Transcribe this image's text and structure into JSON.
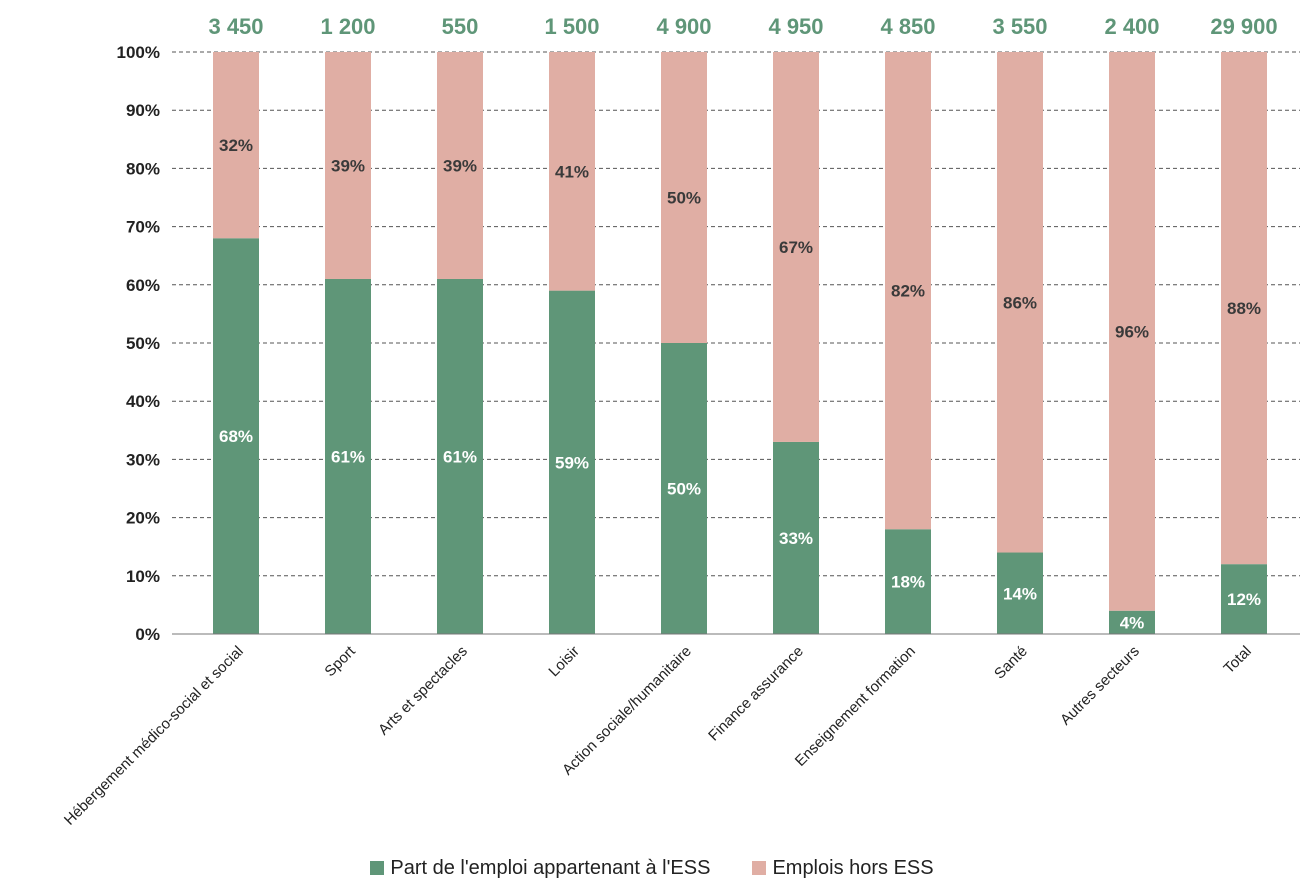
{
  "chart_data": {
    "type": "bar",
    "stacked": true,
    "normalized": true,
    "categories": [
      "Hébergement médico-social et social",
      "Sport",
      "Arts et spectacles",
      "Loisir",
      "Action sociale/humanitaire",
      "Finance assurance",
      "Enseignement formation",
      "Santé",
      "Autres secteurs",
      "Total"
    ],
    "totals": [
      "3 450",
      "1 200",
      "550",
      "1 500",
      "4 900",
      "4 950",
      "4 850",
      "3 550",
      "2 400",
      "29 900"
    ],
    "series": [
      {
        "name": "Part de l'emploi appartenant à l'ESS",
        "color": "#5f9678",
        "label_color": "#ffffff",
        "values": [
          68,
          61,
          61,
          59,
          50,
          33,
          18,
          14,
          4,
          12
        ],
        "labels": [
          "68%",
          "61%",
          "61%",
          "59%",
          "50%",
          "33%",
          "18%",
          "14%",
          "4%",
          "12%"
        ]
      },
      {
        "name": "Emplois hors ESS",
        "color": "#e0aea4",
        "label_color": "#3a3a3a",
        "values": [
          32,
          39,
          39,
          41,
          50,
          67,
          82,
          86,
          96,
          88
        ],
        "labels": [
          "32%",
          "39%",
          "39%",
          "41%",
          "50%",
          "67%",
          "82%",
          "86%",
          "96%",
          "88%"
        ]
      }
    ],
    "yticks": [
      "0%",
      "10%",
      "20%",
      "30%",
      "40%",
      "50%",
      "60%",
      "70%",
      "80%",
      "90%",
      "100%"
    ],
    "ylim": [
      0,
      100
    ],
    "grid": true,
    "legend_position": "bottom",
    "totals_color": "#5f9678"
  }
}
